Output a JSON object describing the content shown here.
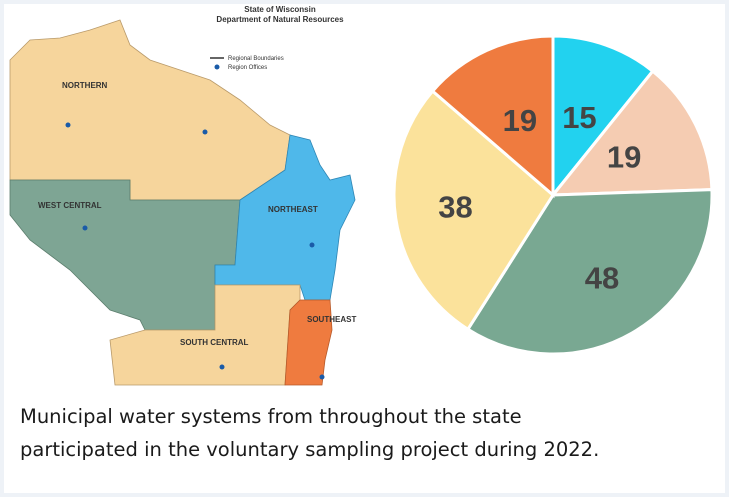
{
  "chart_data": {
    "type": "pie",
    "values": [
      15,
      19,
      48,
      38,
      19
    ],
    "colors": [
      "#22d2ef",
      "#f5ccb2",
      "#79a892",
      "#fbe29b",
      "#ef7b3f"
    ]
  },
  "map": {
    "title": "State of Wisconsin",
    "subtitle": "Department of Natural Resources",
    "legend": [
      "Regional Boundaries",
      "Region Offices"
    ],
    "regions": [
      "NORTHERN",
      "WEST CENTRAL",
      "NORTHEAST",
      "SOUTH CENTRAL",
      "SOUTHEAST"
    ]
  },
  "caption": [
    "Municipal water systems from throughout the state",
    "participated in the voluntary sampling project during 2022."
  ]
}
